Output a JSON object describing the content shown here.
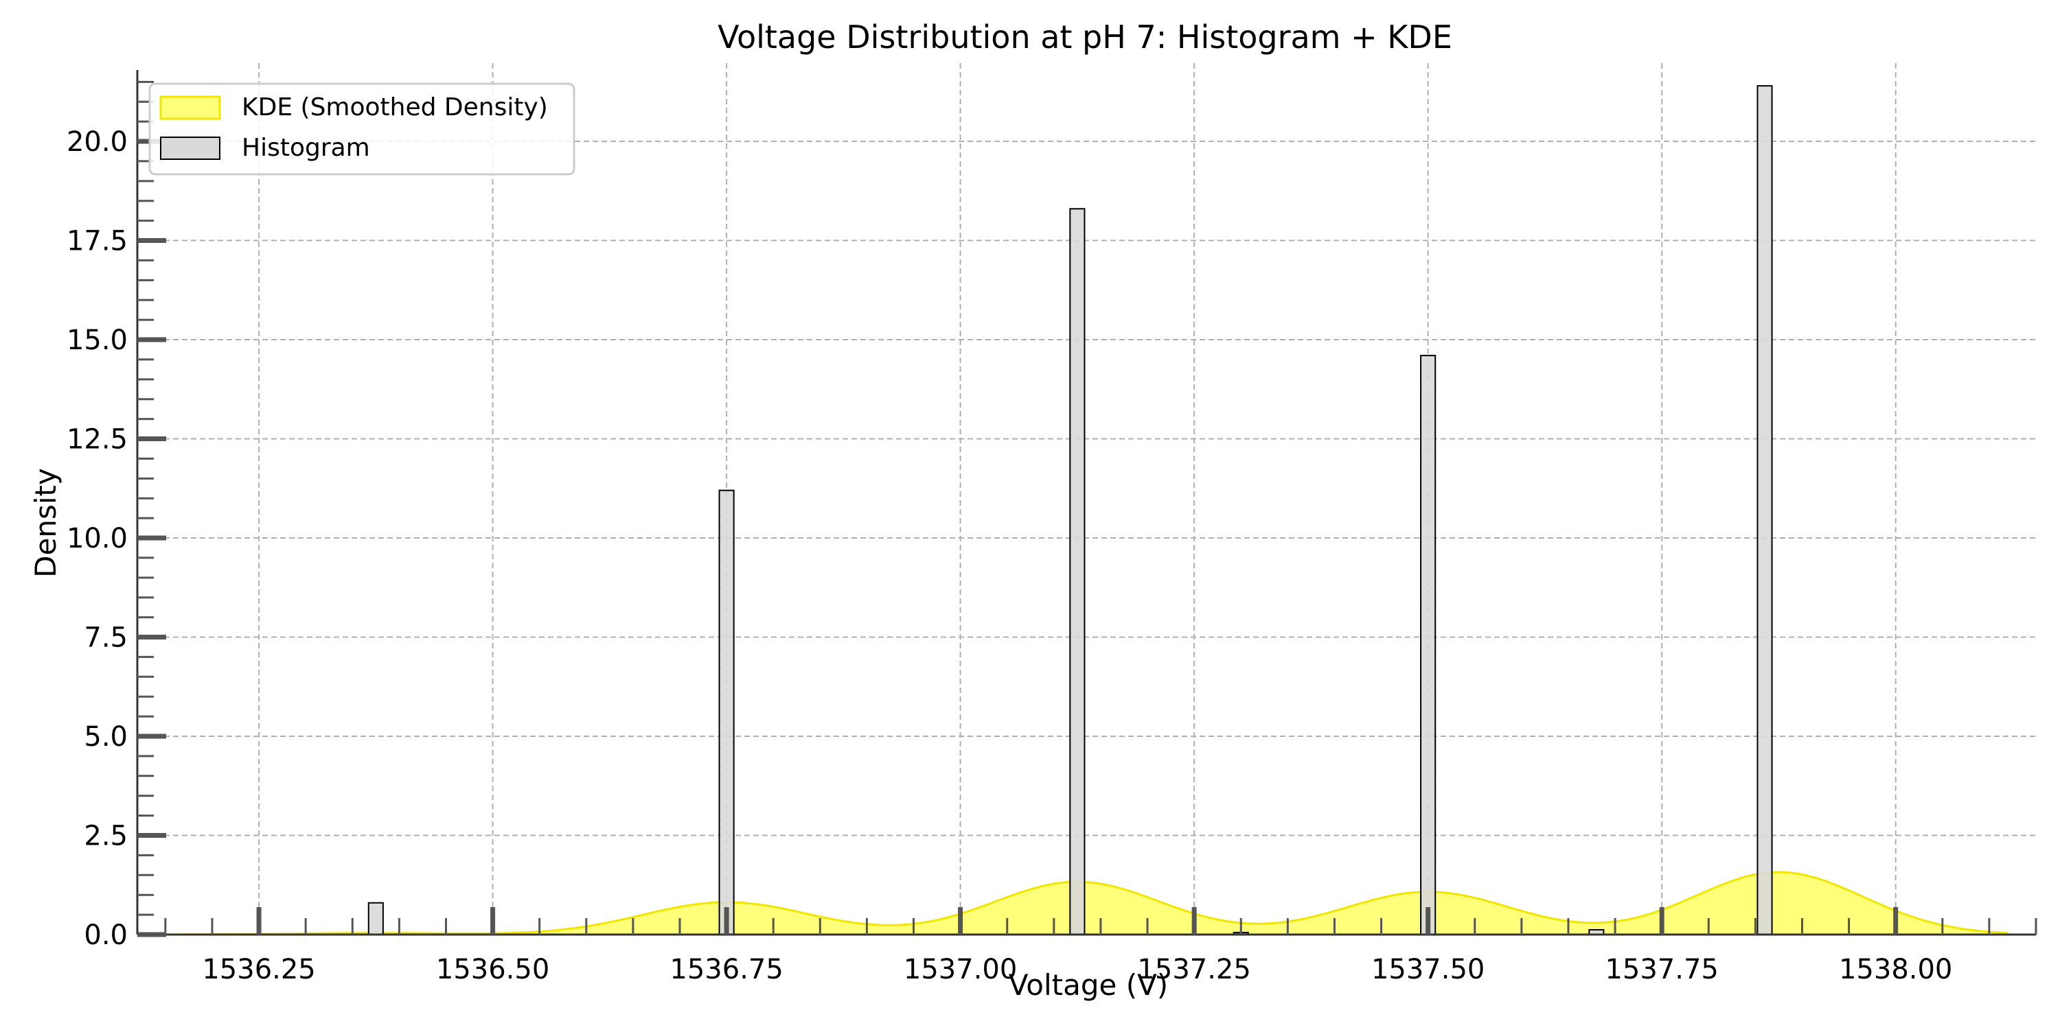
{
  "chart_data": {
    "type": "bar",
    "title": "Voltage Distribution at pH 7: Histogram + KDE",
    "xlabel": "Voltage (V)",
    "ylabel": "Density",
    "xlim": [
      1536.12,
      1538.15
    ],
    "ylim": [
      0,
      21.8
    ],
    "x_ticks": [
      1536.25,
      1536.5,
      1536.75,
      1537.0,
      1537.25,
      1537.5,
      1537.75,
      1538.0
    ],
    "x_tick_labels": [
      "1536.25",
      "1536.50",
      "1536.75",
      "1537.00",
      "1537.25",
      "1537.50",
      "1537.75",
      "1538.00"
    ],
    "y_ticks": [
      0,
      2.5,
      5,
      7.5,
      10,
      12.5,
      15,
      17.5,
      20
    ],
    "y_tick_labels": [
      "0.0",
      "2.5",
      "5.0",
      "7.5",
      "10.0",
      "12.5",
      "15.0",
      "17.5",
      "20.0"
    ],
    "grid": true,
    "legend_position": "top-left",
    "histogram": {
      "name": "Histogram",
      "color": "#d9d9d9",
      "edge_color": "#000000",
      "bin_width": 0.0155,
      "bins": [
        {
          "x": 1536.375,
          "value": 0.8
        },
        {
          "x": 1536.75,
          "value": 11.2
        },
        {
          "x": 1537.125,
          "value": 18.3
        },
        {
          "x": 1537.3,
          "value": 0.05
        },
        {
          "x": 1537.5,
          "value": 14.6
        },
        {
          "x": 1537.68,
          "value": 0.12
        },
        {
          "x": 1537.86,
          "value": 21.4
        }
      ]
    },
    "kde": {
      "name": "KDE (Smoothed Density)",
      "fill_color": "#ffff4d",
      "line_color": "#f2e600",
      "x_range": [
        1536.12,
        1538.12
      ],
      "components": [
        {
          "mean": 1536.375,
          "sd": 0.09,
          "weight": 0.009
        },
        {
          "mean": 1536.75,
          "sd": 0.09,
          "weight": 0.184
        },
        {
          "mean": 1537.125,
          "sd": 0.09,
          "weight": 0.3
        },
        {
          "mean": 1537.5,
          "sd": 0.09,
          "weight": 0.243
        },
        {
          "mean": 1537.875,
          "sd": 0.09,
          "weight": 0.355
        }
      ]
    }
  }
}
